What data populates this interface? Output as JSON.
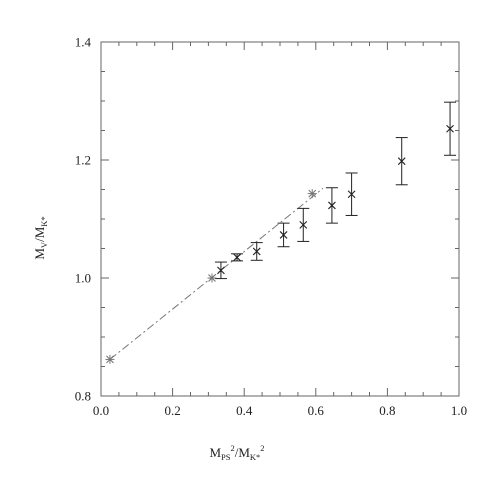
{
  "chart_data": {
    "type": "scatter",
    "title": "",
    "xlabel": "M_PS^2/M_K*^2",
    "ylabel": "M_V/M_K*",
    "xlim": [
      0.0,
      1.0
    ],
    "ylim": [
      0.8,
      1.4
    ],
    "xticks": [
      0.0,
      0.2,
      0.4,
      0.6,
      0.8,
      1.0
    ],
    "yticks": [
      0.8,
      1.0,
      1.2,
      1.4
    ],
    "xtick_labels": [
      "0.0",
      "0.2",
      "0.4",
      "0.6",
      "0.8",
      "1.0"
    ],
    "ytick_labels": [
      "0.8",
      "1.0",
      "1.2",
      "1.4"
    ],
    "grid": false,
    "legend": "none",
    "series": [
      {
        "marker": "x",
        "color": "#222222",
        "points": [
          {
            "x": 0.335,
            "y": 1.013,
            "err": 0.014
          },
          {
            "x": 0.38,
            "y": 1.035,
            "err": 0.006
          },
          {
            "x": 0.435,
            "y": 1.045,
            "err": 0.015
          },
          {
            "x": 0.51,
            "y": 1.073,
            "err": 0.02
          },
          {
            "x": 0.565,
            "y": 1.09,
            "err": 0.028
          },
          {
            "x": 0.645,
            "y": 1.123,
            "err": 0.03
          },
          {
            "x": 0.7,
            "y": 1.142,
            "err": 0.036
          },
          {
            "x": 0.84,
            "y": 1.198,
            "err": 0.04
          },
          {
            "x": 0.975,
            "y": 1.253,
            "err": 0.045
          }
        ]
      },
      {
        "marker": "star",
        "color": "#777777",
        "points": [
          {
            "x": 0.025,
            "y": 0.862
          },
          {
            "x": 0.31,
            "y": 1.0
          },
          {
            "x": 0.59,
            "y": 1.143
          }
        ]
      }
    ],
    "fit_line": {
      "style": "dash-dot",
      "color": "#777777",
      "points": [
        {
          "x": 0.025,
          "y": 0.862
        },
        {
          "x": 0.62,
          "y": 1.152
        }
      ]
    }
  }
}
